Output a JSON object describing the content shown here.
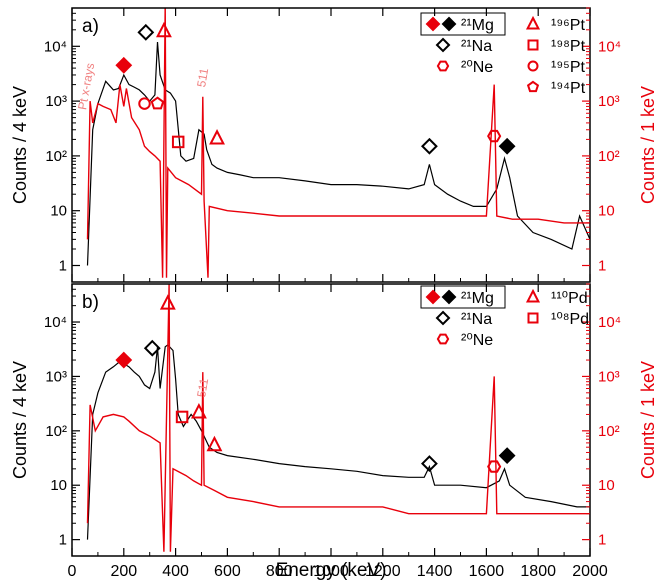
{
  "colors": {
    "black": "#000000",
    "red": "#e8000b",
    "pink": "#f08080"
  },
  "chart_data": [
    {
      "type": "line",
      "panel_label": "a)",
      "xlabel": "Energy (keV)",
      "ylabel_left": "Counts / 4 keV",
      "ylabel_right": "Counts / 1 keV",
      "xlim": [
        0,
        2000
      ],
      "ylim_left": [
        0.5,
        50000
      ],
      "ylim_right": [
        0.5,
        50000
      ],
      "yscale": "log",
      "x_ticks": [
        "0",
        "200",
        "400",
        "600",
        "800",
        "1000",
        "1200",
        "1400",
        "1600",
        "1800",
        "2000"
      ],
      "y_ticks_left": [
        "1",
        "10",
        "10²",
        "10³",
        "10⁴"
      ],
      "y_ticks_right": [
        "1",
        "10",
        "10²",
        "10³",
        "10⁴"
      ],
      "series": [
        {
          "color": "#000000",
          "axis": "left",
          "points": [
            [
              60,
              1
            ],
            [
              80,
              300
            ],
            [
              100,
              900
            ],
            [
              130,
              2300
            ],
            [
              160,
              1600
            ],
            [
              180,
              1700
            ],
            [
              200,
              3000
            ],
            [
              220,
              2000
            ],
            [
              240,
              1800
            ],
            [
              260,
              1600
            ],
            [
              280,
              1300
            ],
            [
              300,
              1000
            ],
            [
              320,
              1300
            ],
            [
              330,
              12000
            ],
            [
              340,
              3000
            ],
            [
              360,
              1600
            ],
            [
              380,
              1400
            ],
            [
              400,
              1000
            ],
            [
              420,
              100
            ],
            [
              440,
              80
            ],
            [
              470,
              90
            ],
            [
              490,
              300
            ],
            [
              510,
              250
            ],
            [
              520,
              130
            ],
            [
              540,
              70
            ],
            [
              560,
              60
            ],
            [
              600,
              50
            ],
            [
              650,
              45
            ],
            [
              700,
              40
            ],
            [
              800,
              40
            ],
            [
              900,
              35
            ],
            [
              1000,
              30
            ],
            [
              1100,
              30
            ],
            [
              1200,
              28
            ],
            [
              1300,
              25
            ],
            [
              1360,
              30
            ],
            [
              1380,
              70
            ],
            [
              1400,
              30
            ],
            [
              1450,
              20
            ],
            [
              1500,
              15
            ],
            [
              1550,
              12
            ],
            [
              1600,
              12
            ],
            [
              1640,
              25
            ],
            [
              1670,
              90
            ],
            [
              1690,
              40
            ],
            [
              1720,
              8
            ],
            [
              1780,
              4
            ],
            [
              1850,
              3
            ],
            [
              1930,
              2
            ],
            [
              1960,
              8
            ],
            [
              2000,
              3
            ]
          ]
        },
        {
          "color": "#e8000b",
          "axis": "right",
          "points": [
            [
              60,
              3
            ],
            [
              70,
              1000
            ],
            [
              80,
              400
            ],
            [
              100,
              900
            ],
            [
              120,
              800
            ],
            [
              150,
              700
            ],
            [
              170,
              400
            ],
            [
              185,
              2000
            ],
            [
              200,
              800
            ],
            [
              210,
              1700
            ],
            [
              230,
              500
            ],
            [
              260,
              300
            ],
            [
              280,
              150
            ],
            [
              300,
              120
            ],
            [
              320,
              100
            ],
            [
              340,
              80
            ],
            [
              350,
              0.6
            ],
            [
              360,
              60000
            ],
            [
              365,
              0.6
            ],
            [
              370,
              60
            ],
            [
              400,
              40
            ],
            [
              450,
              30
            ],
            [
              500,
              20
            ],
            [
              505,
              1200
            ],
            [
              510,
              15
            ],
            [
              525,
              0.6
            ],
            [
              530,
              12
            ],
            [
              600,
              10
            ],
            [
              700,
              9
            ],
            [
              800,
              8
            ],
            [
              900,
              8
            ],
            [
              1000,
              8
            ],
            [
              1100,
              8
            ],
            [
              1200,
              8
            ],
            [
              1300,
              8
            ],
            [
              1400,
              8
            ],
            [
              1500,
              8
            ],
            [
              1600,
              8
            ],
            [
              1630,
              2000
            ],
            [
              1640,
              8
            ],
            [
              1700,
              7
            ],
            [
              1800,
              7
            ],
            [
              1900,
              6
            ],
            [
              2000,
              6
            ]
          ]
        }
      ],
      "annotations": [
        {
          "text": "Pt x-rays",
          "x": 70,
          "y": 1800
        },
        {
          "text": "511",
          "x": 520,
          "y": 2600
        }
      ],
      "markers": [
        {
          "shape": "diamond",
          "fill": "red",
          "x": 200,
          "y": 4500
        },
        {
          "shape": "diamond",
          "fill": "none-black",
          "x": 285,
          "y": 18000
        },
        {
          "shape": "triangle",
          "fill": "none-red",
          "x": 355,
          "y": 19000
        },
        {
          "shape": "circle",
          "fill": "none-red",
          "x": 280,
          "y": 900
        },
        {
          "shape": "pentagon",
          "fill": "none-red",
          "x": 330,
          "y": 900
        },
        {
          "shape": "square",
          "fill": "none-red",
          "x": 410,
          "y": 180
        },
        {
          "shape": "triangle",
          "fill": "none-red",
          "x": 560,
          "y": 210
        },
        {
          "shape": "diamond",
          "fill": "none-black",
          "x": 1380,
          "y": 150
        },
        {
          "shape": "hexagon",
          "fill": "none-red",
          "x": 1630,
          "y": 230
        },
        {
          "shape": "diamond",
          "fill": "black",
          "x": 1680,
          "y": 150
        }
      ],
      "legend": {
        "position": "top-right",
        "entries": [
          {
            "label": "²¹Mg",
            "symbols": [
              "diamond-red",
              "diamond-black"
            ],
            "boxed": true
          },
          {
            "label": "²¹Na",
            "symbols": [
              "diamond-open"
            ]
          },
          {
            "label": "²⁰Ne",
            "symbols": [
              "hexagon-red"
            ]
          },
          {
            "label": "¹⁹⁶Pt",
            "symbols": [
              "triangle-red"
            ]
          },
          {
            "label": "¹⁹⁸Pt",
            "symbols": [
              "square-red"
            ]
          },
          {
            "label": "¹⁹⁵Pt",
            "symbols": [
              "circle-red"
            ]
          },
          {
            "label": "¹⁹⁴Pt",
            "symbols": [
              "pentagon-red"
            ]
          }
        ]
      }
    },
    {
      "type": "line",
      "panel_label": "b)",
      "xlabel": "Energy (keV)",
      "ylabel_left": "Counts / 4 keV",
      "ylabel_right": "Counts / 1 keV",
      "xlim": [
        0,
        2000
      ],
      "ylim_left": [
        0.5,
        50000
      ],
      "ylim_right": [
        0.5,
        50000
      ],
      "yscale": "log",
      "x_ticks": [
        "0",
        "200",
        "400",
        "600",
        "800",
        "1000",
        "1200",
        "1400",
        "1600",
        "1800",
        "2000"
      ],
      "y_ticks_left": [
        "1",
        "10",
        "10²",
        "10³",
        "10⁴"
      ],
      "y_ticks_right": [
        "1",
        "10",
        "10²",
        "10³",
        "10⁴"
      ],
      "series": [
        {
          "color": "#000000",
          "axis": "left",
          "points": [
            [
              60,
              1
            ],
            [
              80,
              200
            ],
            [
              100,
              500
            ],
            [
              130,
              1200
            ],
            [
              160,
              1500
            ],
            [
              180,
              1800
            ],
            [
              200,
              1700
            ],
            [
              220,
              1500
            ],
            [
              240,
              1200
            ],
            [
              260,
              1000
            ],
            [
              280,
              700
            ],
            [
              300,
              600
            ],
            [
              320,
              1200
            ],
            [
              330,
              3500
            ],
            [
              340,
              600
            ],
            [
              360,
              3500
            ],
            [
              370,
              3800
            ],
            [
              390,
              3000
            ],
            [
              400,
              900
            ],
            [
              410,
              200
            ],
            [
              430,
              120
            ],
            [
              460,
              200
            ],
            [
              480,
              150
            ],
            [
              500,
              100
            ],
            [
              530,
              50
            ],
            [
              560,
              40
            ],
            [
              600,
              35
            ],
            [
              700,
              30
            ],
            [
              800,
              25
            ],
            [
              900,
              22
            ],
            [
              1000,
              20
            ],
            [
              1100,
              18
            ],
            [
              1200,
              15
            ],
            [
              1300,
              14
            ],
            [
              1360,
              14
            ],
            [
              1380,
              22
            ],
            [
              1400,
              10
            ],
            [
              1500,
              10
            ],
            [
              1600,
              9
            ],
            [
              1650,
              12
            ],
            [
              1670,
              20
            ],
            [
              1690,
              10
            ],
            [
              1750,
              6
            ],
            [
              1850,
              5
            ],
            [
              1950,
              4
            ],
            [
              2000,
              4
            ]
          ]
        },
        {
          "color": "#e8000b",
          "axis": "right",
          "points": [
            [
              60,
              2
            ],
            [
              70,
              300
            ],
            [
              90,
              100
            ],
            [
              120,
              180
            ],
            [
              160,
              200
            ],
            [
              200,
              180
            ],
            [
              220,
              150
            ],
            [
              260,
              100
            ],
            [
              300,
              80
            ],
            [
              340,
              60
            ],
            [
              355,
              0.6
            ],
            [
              375,
              50000
            ],
            [
              380,
              0.6
            ],
            [
              390,
              20
            ],
            [
              440,
              15
            ],
            [
              470,
              12
            ],
            [
              500,
              10
            ],
            [
              505,
              1200
            ],
            [
              510,
              10
            ],
            [
              550,
              8
            ],
            [
              600,
              6
            ],
            [
              700,
              5
            ],
            [
              800,
              4
            ],
            [
              900,
              4
            ],
            [
              1000,
              4
            ],
            [
              1100,
              4
            ],
            [
              1200,
              4
            ],
            [
              1300,
              3
            ],
            [
              1400,
              3
            ],
            [
              1500,
              3
            ],
            [
              1600,
              3
            ],
            [
              1630,
              1000
            ],
            [
              1640,
              3
            ],
            [
              1700,
              3
            ],
            [
              1800,
              3
            ],
            [
              1900,
              3
            ],
            [
              2000,
              3
            ]
          ]
        }
      ],
      "annotations": [
        {
          "text": "511",
          "x": 520,
          "y": 600
        }
      ],
      "markers": [
        {
          "shape": "diamond",
          "fill": "red",
          "x": 200,
          "y": 2000
        },
        {
          "shape": "diamond",
          "fill": "none-black",
          "x": 310,
          "y": 3300
        },
        {
          "shape": "triangle",
          "fill": "none-red",
          "x": 370,
          "y": 22000
        },
        {
          "shape": "square",
          "fill": "none-red",
          "x": 425,
          "y": 180
        },
        {
          "shape": "triangle",
          "fill": "none-red",
          "x": 490,
          "y": 220
        },
        {
          "shape": "triangle",
          "fill": "none-red",
          "x": 550,
          "y": 55
        },
        {
          "shape": "diamond",
          "fill": "none-black",
          "x": 1380,
          "y": 25
        },
        {
          "shape": "hexagon",
          "fill": "none-red",
          "x": 1630,
          "y": 22
        },
        {
          "shape": "diamond",
          "fill": "black",
          "x": 1680,
          "y": 35
        }
      ],
      "legend": {
        "position": "top-right",
        "entries": [
          {
            "label": "²¹Mg",
            "symbols": [
              "diamond-red",
              "diamond-black"
            ],
            "boxed": true
          },
          {
            "label": "²¹Na",
            "symbols": [
              "diamond-open"
            ]
          },
          {
            "label": "²⁰Ne",
            "symbols": [
              "hexagon-red"
            ]
          },
          {
            "label": "¹¹⁰Pd",
            "symbols": [
              "triangle-red"
            ]
          },
          {
            "label": "¹⁰⁸Pd",
            "symbols": [
              "square-red"
            ]
          }
        ]
      }
    }
  ]
}
